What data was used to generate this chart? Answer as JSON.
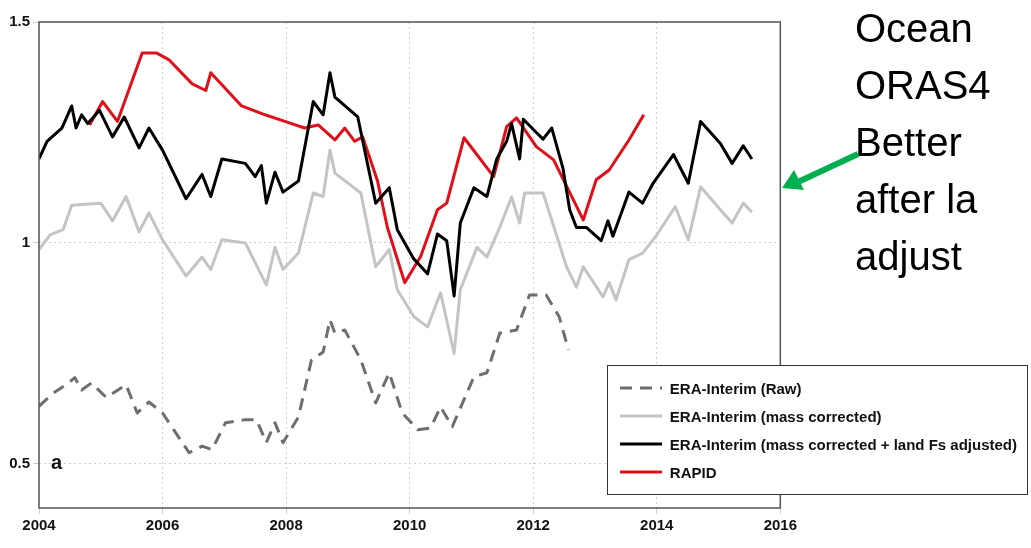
{
  "chart_data": {
    "type": "line",
    "xlim": [
      2004,
      2016
    ],
    "xticks": [
      2004,
      2006,
      2008,
      2010,
      2012,
      2014,
      2016
    ],
    "ylim": [
      0.4,
      1.5
    ],
    "yticks": [
      0.5,
      1,
      1.5
    ],
    "grid": true,
    "legend": "bottom right",
    "annotations": [
      "a",
      "Ocean",
      "ORAS4",
      "Better",
      "after la",
      "adjust"
    ],
    "series": [
      {
        "name": "ERA-Interim (Raw)",
        "color": "#6e6e6e",
        "line_style": "dashed",
        "x": [
          2004.0,
          2004.23,
          2004.45,
          2004.58,
          2004.69,
          2004.85,
          2005.09,
          2005.41,
          2005.59,
          2005.78,
          2006.0,
          2006.43,
          2006.64,
          2006.8,
          2007.02,
          2007.34,
          2007.52,
          2007.68,
          2007.82,
          2007.95,
          2008.2,
          2008.41,
          2008.6,
          2008.71,
          2008.79,
          2008.95,
          2009.21,
          2009.45,
          2009.67,
          2009.88,
          2010.09,
          2010.13,
          2010.34,
          2010.5,
          2010.69,
          2011.04,
          2011.25,
          2011.46,
          2011.73,
          2011.94,
          2012.21,
          2012.42,
          2012.57
        ],
        "values": [
          0.63,
          0.66,
          0.68,
          0.695,
          0.667,
          0.683,
          0.65,
          0.679,
          0.615,
          0.64,
          0.615,
          0.525,
          0.54,
          0.532,
          0.593,
          0.6,
          0.6,
          0.548,
          0.593,
          0.548,
          0.606,
          0.735,
          0.753,
          0.826,
          0.796,
          0.803,
          0.735,
          0.638,
          0.706,
          0.615,
          0.584,
          0.577,
          0.581,
          0.629,
          0.584,
          0.697,
          0.706,
          0.796,
          0.803,
          0.882,
          0.882,
          0.833,
          0.758
        ]
      },
      {
        "name": "ERA-Interim (mass corrected)",
        "color": "#c4c4c4",
        "x": [
          2004.0,
          2004.18,
          2004.39,
          2004.53,
          2005.0,
          2005.19,
          2005.41,
          2005.62,
          2005.78,
          2006.0,
          2006.38,
          2006.64,
          2006.78,
          2006.96,
          2007.34,
          2007.68,
          2007.82,
          2007.95,
          2008.2,
          2008.44,
          2008.6,
          2008.71,
          2008.79,
          2009.21,
          2009.45,
          2009.67,
          2009.8,
          2010.07,
          2010.29,
          2010.5,
          2010.72,
          2010.82,
          2011.09,
          2011.25,
          2011.46,
          2011.65,
          2011.78,
          2011.86,
          2012.16,
          2012.54,
          2012.7,
          2012.81,
          2013.13,
          2013.23,
          2013.34,
          2013.55,
          2013.77,
          2013.98,
          2014.3,
          2014.51,
          2014.71,
          2015.03,
          2015.22,
          2015.4,
          2015.54
        ],
        "values": [
          0.985,
          1.018,
          1.03,
          1.085,
          1.09,
          1.05,
          1.105,
          1.025,
          1.068,
          1.007,
          0.925,
          0.968,
          0.94,
          1.007,
          1.0,
          0.905,
          0.99,
          0.94,
          0.977,
          1.113,
          1.105,
          1.21,
          1.158,
          1.113,
          0.946,
          0.985,
          0.894,
          0.833,
          0.81,
          0.887,
          0.75,
          0.894,
          0.99,
          0.968,
          1.036,
          1.104,
          1.045,
          1.113,
          1.113,
          0.946,
          0.9,
          0.946,
          0.878,
          0.91,
          0.871,
          0.962,
          0.977,
          1.014,
          1.082,
          1.007,
          1.127,
          1.075,
          1.045,
          1.09,
          1.07
        ]
      },
      {
        "name": "ERA-Interim (mass corrected + land Fs adjusted)",
        "color": "#000000",
        "x": [
          2004.0,
          2004.13,
          2004.37,
          2004.53,
          2004.6,
          2004.69,
          2004.79,
          2004.98,
          2005.19,
          2005.38,
          2005.62,
          2005.78,
          2006.0,
          2006.38,
          2006.64,
          2006.78,
          2006.96,
          2007.34,
          2007.5,
          2007.6,
          2007.68,
          2007.82,
          2007.95,
          2008.2,
          2008.44,
          2008.6,
          2008.71,
          2008.79,
          2009.16,
          2009.45,
          2009.67,
          2009.8,
          2010.06,
          2010.29,
          2010.45,
          2010.6,
          2010.72,
          2010.82,
          2011.04,
          2011.25,
          2011.41,
          2011.57,
          2011.65,
          2011.78,
          2011.84,
          2012.05,
          2012.16,
          2012.3,
          2012.48,
          2012.59,
          2012.7,
          2012.86,
          2013.1,
          2013.21,
          2013.29,
          2013.55,
          2013.77,
          2013.94,
          2014.27,
          2014.51,
          2014.71,
          2015.03,
          2015.22,
          2015.4,
          2015.54
        ],
        "values": [
          1.19,
          1.23,
          1.26,
          1.31,
          1.26,
          1.29,
          1.27,
          1.3,
          1.24,
          1.285,
          1.215,
          1.26,
          1.21,
          1.1,
          1.155,
          1.105,
          1.19,
          1.18,
          1.15,
          1.175,
          1.09,
          1.16,
          1.115,
          1.14,
          1.32,
          1.29,
          1.385,
          1.33,
          1.285,
          1.09,
          1.125,
          1.03,
          0.965,
          0.93,
          1.02,
          1.005,
          0.88,
          1.045,
          1.125,
          1.105,
          1.19,
          1.23,
          1.27,
          1.19,
          1.28,
          1.25,
          1.235,
          1.26,
          1.17,
          1.075,
          1.035,
          1.035,
          1.005,
          1.05,
          1.015,
          1.115,
          1.09,
          1.135,
          1.2,
          1.135,
          1.275,
          1.225,
          1.18,
          1.22,
          1.19
        ]
      },
      {
        "name": "RAPID",
        "color": "#e0101a",
        "x": [
          2004.82,
          2005.03,
          2005.27,
          2005.67,
          2005.9,
          2006.1,
          2006.48,
          2006.7,
          2006.78,
          2007.28,
          2007.66,
          2007.98,
          2008.3,
          2008.52,
          2008.79,
          2008.95,
          2009.11,
          2009.24,
          2009.48,
          2009.64,
          2009.92,
          2010.18,
          2010.45,
          2010.6,
          2010.88,
          2011.36,
          2011.57,
          2011.73,
          2012.05,
          2012.33,
          2012.81,
          2013.02,
          2013.23,
          2013.55,
          2013.79
        ],
        "values": [
          1.267,
          1.32,
          1.275,
          1.43,
          1.43,
          1.415,
          1.36,
          1.345,
          1.385,
          1.31,
          1.29,
          1.275,
          1.26,
          1.267,
          1.233,
          1.26,
          1.23,
          1.24,
          1.14,
          1.035,
          0.91,
          0.97,
          1.075,
          1.09,
          1.238,
          1.15,
          1.263,
          1.283,
          1.218,
          1.188,
          1.052,
          1.143,
          1.165,
          1.233,
          1.29
        ]
      }
    ]
  }
}
